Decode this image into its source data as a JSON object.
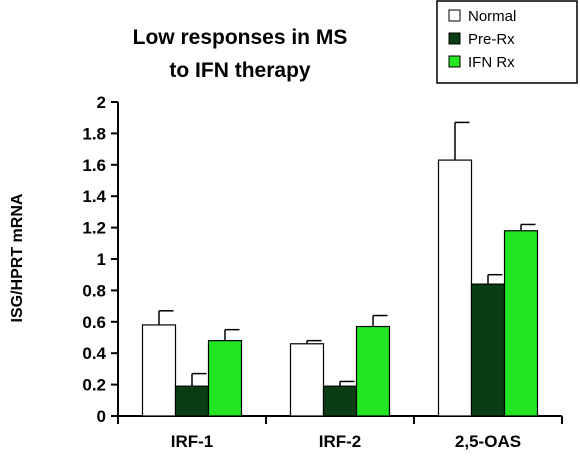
{
  "chart_data": {
    "type": "bar",
    "title_lines": [
      "Low responses in MS",
      "to IFN therapy"
    ],
    "xlabel": "",
    "ylabel": "ISG/HPRT mRNA",
    "ylim": [
      0,
      2
    ],
    "yticks": [
      0,
      0.2,
      0.4,
      0.6,
      0.8,
      1,
      1.2,
      1.4,
      1.6,
      1.8,
      2
    ],
    "ytick_labels": [
      "0",
      "0.2",
      "0.4",
      "0.6",
      "0.8",
      "1",
      "1.2",
      "1.4",
      "1.6",
      "1.8",
      "2"
    ],
    "categories": [
      "IRF-1",
      "IRF-2",
      "2,5-OAS"
    ],
    "series": [
      {
        "name": "Normal",
        "color": "#ffffff",
        "values": [
          0.58,
          0.46,
          1.63
        ],
        "errors": [
          0.09,
          0.02,
          0.24
        ]
      },
      {
        "name": "Pre-Rx",
        "color": "#0b3d14",
        "values": [
          0.19,
          0.19,
          0.84
        ],
        "errors": [
          0.08,
          0.03,
          0.06
        ]
      },
      {
        "name": "IFN Rx",
        "color": "#22e622",
        "values": [
          0.48,
          0.57,
          1.18
        ],
        "errors": [
          0.07,
          0.07,
          0.04
        ]
      }
    ],
    "grid": false,
    "legend_position": "top-right"
  }
}
